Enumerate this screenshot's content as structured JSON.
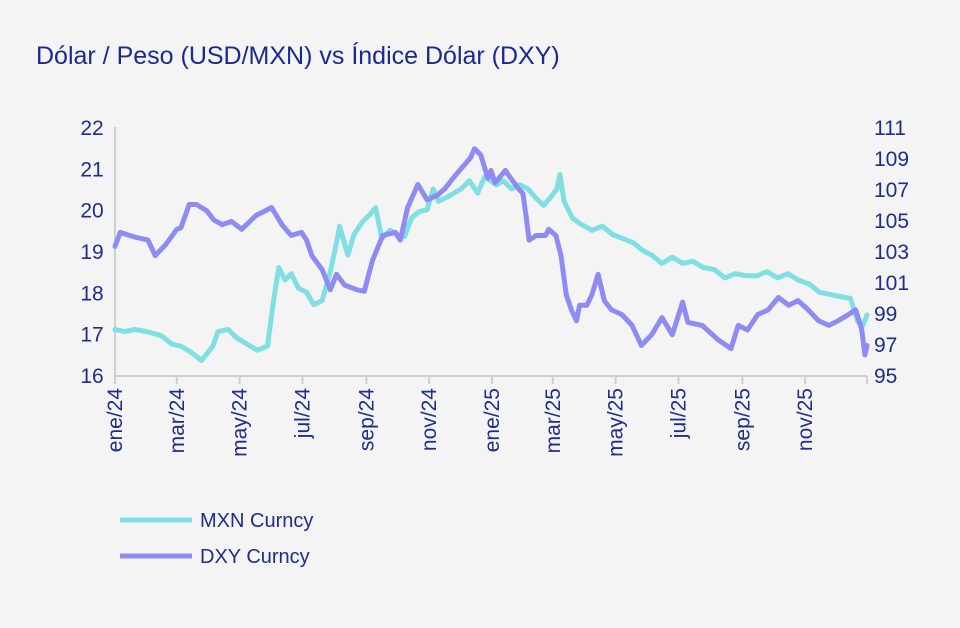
{
  "chart_data": {
    "type": "line",
    "title": "Dólar / Peso (USD/MXN) vs Índice Dólar (DXY)",
    "xlabel": "",
    "ylabel": "",
    "x_range": [
      "2024-01-01",
      "2025-12-31"
    ],
    "x_ticks": [
      {
        "date": "2024-01-01",
        "label": "ene/24"
      },
      {
        "date": "2024-03-01",
        "label": "mar/24"
      },
      {
        "date": "2024-05-01",
        "label": "may/24"
      },
      {
        "date": "2024-07-01",
        "label": "jul/24"
      },
      {
        "date": "2024-09-01",
        "label": "sep/24"
      },
      {
        "date": "2024-11-01",
        "label": "nov/24"
      },
      {
        "date": "2025-01-01",
        "label": "ene/25"
      },
      {
        "date": "2025-03-01",
        "label": "mar/25"
      },
      {
        "date": "2025-05-01",
        "label": "may/25"
      },
      {
        "date": "2025-07-01",
        "label": "jul/25"
      },
      {
        "date": "2025-09-01",
        "label": "sep/25"
      },
      {
        "date": "2025-11-01",
        "label": "nov/25"
      }
    ],
    "y_left": {
      "ylim": [
        16,
        22
      ],
      "ticks": [
        "16",
        "17",
        "18",
        "19",
        "20",
        "21",
        "22"
      ]
    },
    "y_right": {
      "ylim": [
        95,
        111
      ],
      "ticks": [
        "95",
        "97",
        "99",
        "101",
        "103",
        "105",
        "107",
        "109",
        "111"
      ]
    },
    "grid": false,
    "legend_position": "bottom-left",
    "series": [
      {
        "name": "MXN Curncy",
        "axis": "left",
        "color": "#7fdfe2",
        "points": [
          [
            "2024-01-01",
            17.1
          ],
          [
            "2024-01-10",
            17.05
          ],
          [
            "2024-01-20",
            17.1
          ],
          [
            "2024-02-01",
            17.05
          ],
          [
            "2024-02-15",
            16.95
          ],
          [
            "2024-02-25",
            16.75
          ],
          [
            "2024-03-05",
            16.7
          ],
          [
            "2024-03-15",
            16.55
          ],
          [
            "2024-03-25",
            16.35
          ],
          [
            "2024-04-05",
            16.7
          ],
          [
            "2024-04-10",
            17.05
          ],
          [
            "2024-04-20",
            17.1
          ],
          [
            "2024-04-28",
            16.9
          ],
          [
            "2024-05-08",
            16.75
          ],
          [
            "2024-05-18",
            16.6
          ],
          [
            "2024-05-28",
            16.7
          ],
          [
            "2024-06-03",
            17.8
          ],
          [
            "2024-06-08",
            18.6
          ],
          [
            "2024-06-14",
            18.3
          ],
          [
            "2024-06-20",
            18.45
          ],
          [
            "2024-06-27",
            18.1
          ],
          [
            "2024-07-05",
            18.0
          ],
          [
            "2024-07-12",
            17.7
          ],
          [
            "2024-07-20",
            17.8
          ],
          [
            "2024-07-28",
            18.5
          ],
          [
            "2024-08-03",
            19.2
          ],
          [
            "2024-08-06",
            19.6
          ],
          [
            "2024-08-14",
            18.9
          ],
          [
            "2024-08-20",
            19.4
          ],
          [
            "2024-08-28",
            19.7
          ],
          [
            "2024-09-05",
            19.9
          ],
          [
            "2024-09-10",
            20.05
          ],
          [
            "2024-09-16",
            19.3
          ],
          [
            "2024-09-24",
            19.5
          ],
          [
            "2024-10-01",
            19.4
          ],
          [
            "2024-10-08",
            19.35
          ],
          [
            "2024-10-15",
            19.8
          ],
          [
            "2024-10-22",
            19.95
          ],
          [
            "2024-10-30",
            20.0
          ],
          [
            "2024-11-05",
            20.5
          ],
          [
            "2024-11-10",
            20.2
          ],
          [
            "2024-11-18",
            20.3
          ],
          [
            "2024-11-25",
            20.4
          ],
          [
            "2024-12-02",
            20.5
          ],
          [
            "2024-12-10",
            20.7
          ],
          [
            "2024-12-18",
            20.4
          ],
          [
            "2024-12-25",
            20.8
          ],
          [
            "2025-01-05",
            20.6
          ],
          [
            "2025-01-12",
            20.7
          ],
          [
            "2025-01-20",
            20.5
          ],
          [
            "2025-01-28",
            20.6
          ],
          [
            "2025-02-05",
            20.5
          ],
          [
            "2025-02-12",
            20.3
          ],
          [
            "2025-02-20",
            20.1
          ],
          [
            "2025-02-27",
            20.3
          ],
          [
            "2025-03-05",
            20.5
          ],
          [
            "2025-03-08",
            20.85
          ],
          [
            "2025-03-12",
            20.2
          ],
          [
            "2025-03-20",
            19.8
          ],
          [
            "2025-03-28",
            19.65
          ],
          [
            "2025-04-08",
            19.5
          ],
          [
            "2025-04-18",
            19.6
          ],
          [
            "2025-04-28",
            19.4
          ],
          [
            "2025-05-08",
            19.3
          ],
          [
            "2025-05-18",
            19.2
          ],
          [
            "2025-05-28",
            19.0
          ],
          [
            "2025-06-05",
            18.9
          ],
          [
            "2025-06-15",
            18.7
          ],
          [
            "2025-06-25",
            18.85
          ],
          [
            "2025-07-05",
            18.7
          ],
          [
            "2025-07-15",
            18.75
          ],
          [
            "2025-07-25",
            18.6
          ],
          [
            "2025-08-05",
            18.55
          ],
          [
            "2025-08-15",
            18.35
          ],
          [
            "2025-08-25",
            18.45
          ],
          [
            "2025-09-05",
            18.4
          ],
          [
            "2025-09-15",
            18.4
          ],
          [
            "2025-09-25",
            18.5
          ],
          [
            "2025-10-05",
            18.35
          ],
          [
            "2025-10-15",
            18.45
          ],
          [
            "2025-10-25",
            18.3
          ],
          [
            "2025-11-05",
            18.2
          ],
          [
            "2025-11-15",
            18.0
          ],
          [
            "2025-11-25",
            17.95
          ],
          [
            "2025-12-05",
            17.9
          ],
          [
            "2025-12-15",
            17.85
          ],
          [
            "2025-12-22",
            17.3
          ],
          [
            "2025-12-27",
            17.2
          ],
          [
            "2025-12-31",
            17.45
          ]
        ]
      },
      {
        "name": "DXY Curncy",
        "axis": "right",
        "color": "#8f8bf4",
        "points": [
          [
            "2024-01-01",
            103.3
          ],
          [
            "2024-01-06",
            104.2
          ],
          [
            "2024-01-20",
            103.9
          ],
          [
            "2024-02-02",
            103.7
          ],
          [
            "2024-02-09",
            102.7
          ],
          [
            "2024-02-19",
            103.4
          ],
          [
            "2024-03-01",
            104.4
          ],
          [
            "2024-03-05",
            104.5
          ],
          [
            "2024-03-13",
            106.0
          ],
          [
            "2024-03-20",
            106.0
          ],
          [
            "2024-03-30",
            105.6
          ],
          [
            "2024-04-06",
            105.0
          ],
          [
            "2024-04-14",
            104.7
          ],
          [
            "2024-04-23",
            104.9
          ],
          [
            "2024-05-03",
            104.4
          ],
          [
            "2024-05-17",
            105.3
          ],
          [
            "2024-06-01",
            105.8
          ],
          [
            "2024-06-11",
            104.7
          ],
          [
            "2024-06-20",
            104.0
          ],
          [
            "2024-06-30",
            104.2
          ],
          [
            "2024-07-05",
            103.7
          ],
          [
            "2024-07-10",
            102.7
          ],
          [
            "2024-07-20",
            101.8
          ],
          [
            "2024-07-28",
            100.5
          ],
          [
            "2024-08-03",
            101.5
          ],
          [
            "2024-08-11",
            100.8
          ],
          [
            "2024-08-23",
            100.5
          ],
          [
            "2024-08-30",
            100.4
          ],
          [
            "2024-09-07",
            102.4
          ],
          [
            "2024-09-17",
            104.0
          ],
          [
            "2024-09-29",
            104.2
          ],
          [
            "2024-10-04",
            103.7
          ],
          [
            "2024-10-11",
            105.8
          ],
          [
            "2024-10-21",
            107.3
          ],
          [
            "2024-10-30",
            106.3
          ],
          [
            "2024-11-09",
            106.6
          ],
          [
            "2024-11-16",
            107.0
          ],
          [
            "2024-11-23",
            107.6
          ],
          [
            "2024-12-03",
            108.4
          ],
          [
            "2024-12-11",
            109.0
          ],
          [
            "2024-12-15",
            109.6
          ],
          [
            "2024-12-21",
            109.2
          ],
          [
            "2024-12-28",
            107.7
          ],
          [
            "2024-12-31",
            108.2
          ],
          [
            "2025-01-04",
            107.4
          ],
          [
            "2025-01-14",
            108.2
          ],
          [
            "2025-01-19",
            107.7
          ],
          [
            "2025-01-27",
            107.0
          ],
          [
            "2025-01-31",
            106.7
          ],
          [
            "2025-02-03",
            105.3
          ],
          [
            "2025-02-06",
            103.7
          ],
          [
            "2025-02-13",
            104.0
          ],
          [
            "2025-02-22",
            104.0
          ],
          [
            "2025-02-25",
            104.4
          ],
          [
            "2025-03-04",
            104.0
          ],
          [
            "2025-03-09",
            102.7
          ],
          [
            "2025-03-14",
            100.2
          ],
          [
            "2025-03-19",
            99.2
          ],
          [
            "2025-03-24",
            98.5
          ],
          [
            "2025-03-27",
            99.5
          ],
          [
            "2025-04-03",
            99.5
          ],
          [
            "2025-04-08",
            100.2
          ],
          [
            "2025-04-14",
            101.5
          ],
          [
            "2025-04-20",
            99.8
          ],
          [
            "2025-04-27",
            99.2
          ],
          [
            "2025-05-07",
            98.9
          ],
          [
            "2025-05-17",
            98.2
          ],
          [
            "2025-05-26",
            96.9
          ],
          [
            "2025-06-05",
            97.6
          ],
          [
            "2025-06-15",
            98.7
          ],
          [
            "2025-06-25",
            97.6
          ],
          [
            "2025-07-05",
            99.7
          ],
          [
            "2025-07-10",
            98.4
          ],
          [
            "2025-07-24",
            98.2
          ],
          [
            "2025-08-08",
            97.3
          ],
          [
            "2025-08-21",
            96.7
          ],
          [
            "2025-08-28",
            98.2
          ],
          [
            "2025-09-06",
            97.9
          ],
          [
            "2025-09-16",
            98.9
          ],
          [
            "2025-09-26",
            99.2
          ],
          [
            "2025-10-06",
            100.0
          ],
          [
            "2025-10-16",
            99.5
          ],
          [
            "2025-10-25",
            99.8
          ],
          [
            "2025-11-04",
            99.2
          ],
          [
            "2025-11-14",
            98.5
          ],
          [
            "2025-11-24",
            98.2
          ],
          [
            "2025-12-03",
            98.5
          ],
          [
            "2025-12-13",
            98.9
          ],
          [
            "2025-12-20",
            99.2
          ],
          [
            "2025-12-26",
            97.9
          ],
          [
            "2025-12-29",
            96.3
          ],
          [
            "2025-12-31",
            96.9
          ]
        ]
      }
    ]
  }
}
